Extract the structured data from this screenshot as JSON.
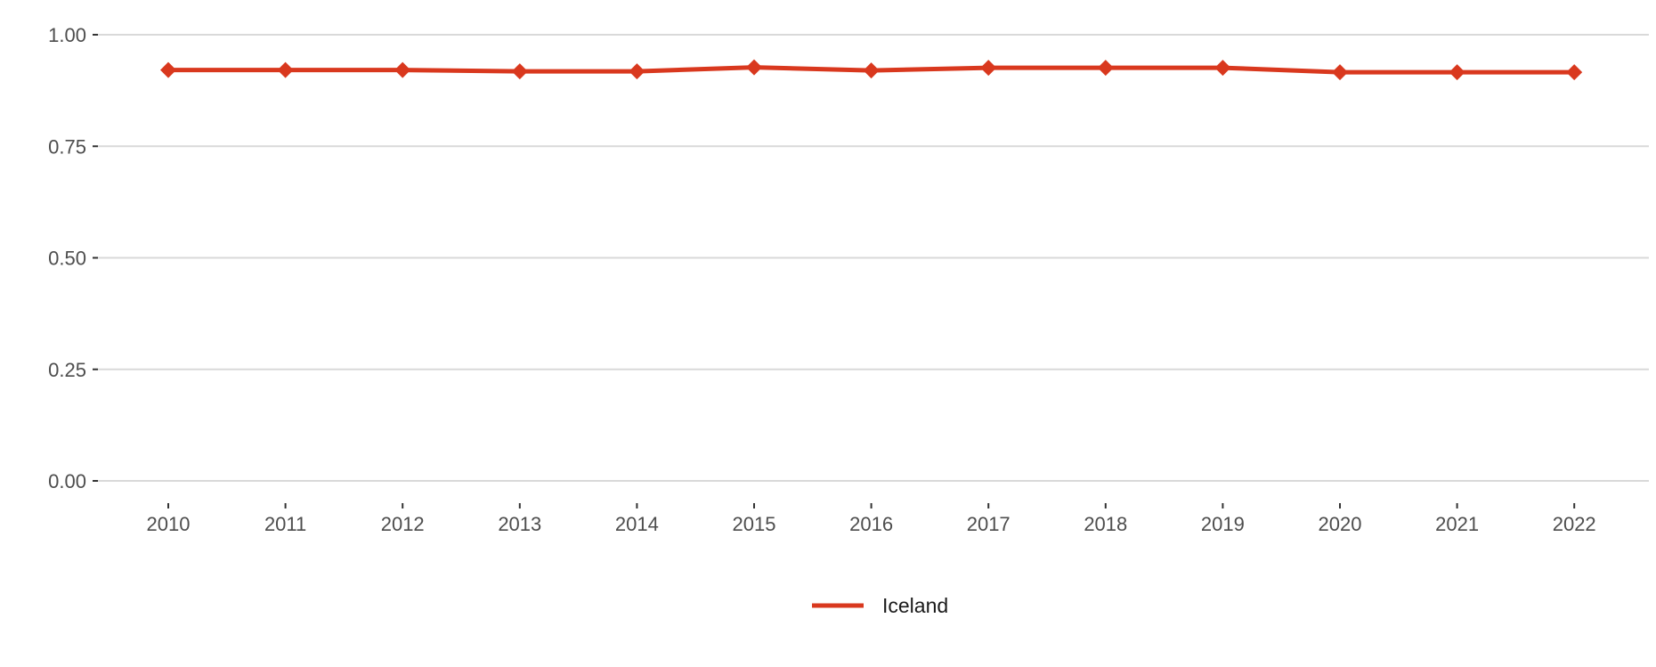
{
  "chart_data": {
    "type": "line",
    "title": "",
    "xlabel": "",
    "ylabel": "",
    "x": [
      "2010",
      "2011",
      "2012",
      "2013",
      "2014",
      "2015",
      "2016",
      "2017",
      "2018",
      "2019",
      "2020",
      "2021",
      "2022"
    ],
    "series": [
      {
        "name": "Iceland",
        "color": "#d9381e",
        "marker": "diamond",
        "values": [
          0.921,
          0.921,
          0.921,
          0.918,
          0.918,
          0.927,
          0.92,
          0.926,
          0.926,
          0.926,
          0.916,
          0.916,
          0.916
        ]
      }
    ],
    "ylim": [
      0,
      1
    ],
    "y_ticks": [
      "0.00",
      "0.25",
      "0.50",
      "0.75",
      "1.00"
    ],
    "grid": "horizontal",
    "legend_position": "bottom"
  }
}
